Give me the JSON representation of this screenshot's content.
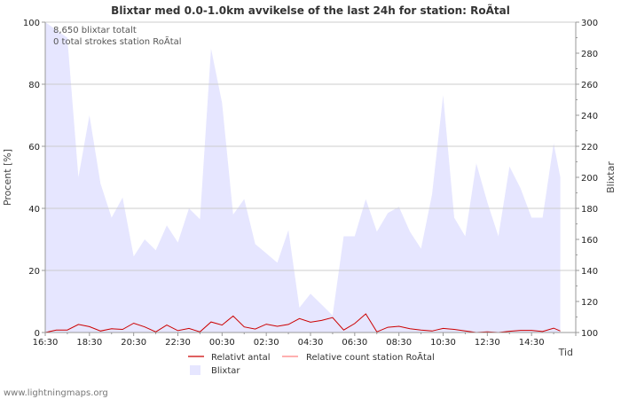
{
  "chart_data": {
    "type": "area",
    "title": "Blixtar med 0.0-1.0km avvikelse of the last 24h for station: RoÃtal",
    "annotations": [
      "8,650 blixtar totalt",
      "0 total strokes station RoÃtal"
    ],
    "xlabel": "Tid",
    "ylabel_left": "Procent   [%]",
    "ylabel_right": "Blixtar",
    "x_ticks": [
      "16:30",
      "18:30",
      "20:30",
      "22:30",
      "00:30",
      "02:30",
      "04:30",
      "06:30",
      "08:30",
      "10:30",
      "12:30",
      "14:30"
    ],
    "ylim_left": [
      0,
      100
    ],
    "ylim_right": [
      100,
      300
    ],
    "y_ticks_left": [
      0,
      20,
      40,
      60,
      80,
      100
    ],
    "y_ticks_right": [
      100,
      120,
      140,
      160,
      180,
      200,
      220,
      240,
      260,
      280,
      300
    ],
    "x_range_hours": [
      0,
      24
    ],
    "series": [
      {
        "name": "Blixtar",
        "axis": "right",
        "color": "#e6e6ff",
        "points": [
          [
            0,
            301
          ],
          [
            1,
            290
          ],
          [
            1.5,
            200
          ],
          [
            2,
            240
          ],
          [
            2.5,
            196
          ],
          [
            3,
            174
          ],
          [
            3.5,
            187
          ],
          [
            4,
            149
          ],
          [
            4.5,
            160
          ],
          [
            5,
            153
          ],
          [
            5.5,
            169
          ],
          [
            6,
            158
          ],
          [
            6.5,
            180
          ],
          [
            7,
            173
          ],
          [
            7.5,
            283
          ],
          [
            8,
            248
          ],
          [
            8.5,
            176
          ],
          [
            9,
            186
          ],
          [
            9.5,
            157
          ],
          [
            10,
            151
          ],
          [
            10.5,
            145
          ],
          [
            11,
            166
          ],
          [
            11.5,
            116
          ],
          [
            12,
            125
          ],
          [
            12.5,
            118
          ],
          [
            13,
            111
          ],
          [
            13.5,
            162
          ],
          [
            14,
            162
          ],
          [
            14.5,
            186
          ],
          [
            15,
            165
          ],
          [
            15.5,
            177
          ],
          [
            16,
            181
          ],
          [
            16.5,
            165
          ],
          [
            17,
            154
          ],
          [
            17.5,
            189
          ],
          [
            18,
            253
          ],
          [
            18.5,
            174
          ],
          [
            19,
            162
          ],
          [
            19.5,
            209
          ],
          [
            20,
            184
          ],
          [
            20.5,
            162
          ],
          [
            21,
            207
          ],
          [
            21.5,
            193
          ],
          [
            22,
            174
          ],
          [
            22.5,
            174
          ],
          [
            23,
            222
          ],
          [
            23.3,
            200
          ]
        ]
      },
      {
        "name": "Relativt antal",
        "axis": "left",
        "color": "#cc0000",
        "points": [
          [
            0,
            0
          ],
          [
            0.5,
            0.8
          ],
          [
            1,
            0.8
          ],
          [
            1.5,
            2.6
          ],
          [
            2,
            1.9
          ],
          [
            2.5,
            0.5
          ],
          [
            3,
            1.2
          ],
          [
            3.5,
            1.0
          ],
          [
            4,
            3.0
          ],
          [
            4.5,
            1.8
          ],
          [
            5,
            0.2
          ],
          [
            5.5,
            2.4
          ],
          [
            6,
            0.6
          ],
          [
            6.5,
            1.3
          ],
          [
            7,
            0.2
          ],
          [
            7.5,
            3.4
          ],
          [
            8,
            2.4
          ],
          [
            8.5,
            5.3
          ],
          [
            9,
            1.8
          ],
          [
            9.5,
            1.1
          ],
          [
            10,
            2.7
          ],
          [
            10.5,
            2.0
          ],
          [
            11,
            2.6
          ],
          [
            11.5,
            4.5
          ],
          [
            12,
            3.3
          ],
          [
            12.5,
            3.9
          ],
          [
            13,
            4.8
          ],
          [
            13.5,
            0.8
          ],
          [
            14,
            2.9
          ],
          [
            14.5,
            6.0
          ],
          [
            15,
            0.2
          ],
          [
            15.5,
            1.7
          ],
          [
            16,
            2.0
          ],
          [
            16.5,
            1.2
          ],
          [
            17,
            0.8
          ],
          [
            17.5,
            0.5
          ],
          [
            18,
            1.3
          ],
          [
            18.5,
            1.0
          ],
          [
            19,
            0.5
          ],
          [
            19.5,
            0.0
          ],
          [
            20,
            0.2
          ],
          [
            20.5,
            0.0
          ],
          [
            21,
            0.4
          ],
          [
            21.5,
            0.7
          ],
          [
            22,
            0.7
          ],
          [
            22.5,
            0.3
          ],
          [
            23,
            1.4
          ],
          [
            23.3,
            0.5
          ]
        ]
      },
      {
        "name": "Relative count station RoÃtal",
        "axis": "left",
        "color": "#ff8080",
        "points": []
      }
    ],
    "legend": [
      "Relativt antal",
      "Relative count station RoÃtal",
      "Blixtar"
    ],
    "legend_placement": "bottom"
  },
  "footer": "www.lightningmaps.org"
}
